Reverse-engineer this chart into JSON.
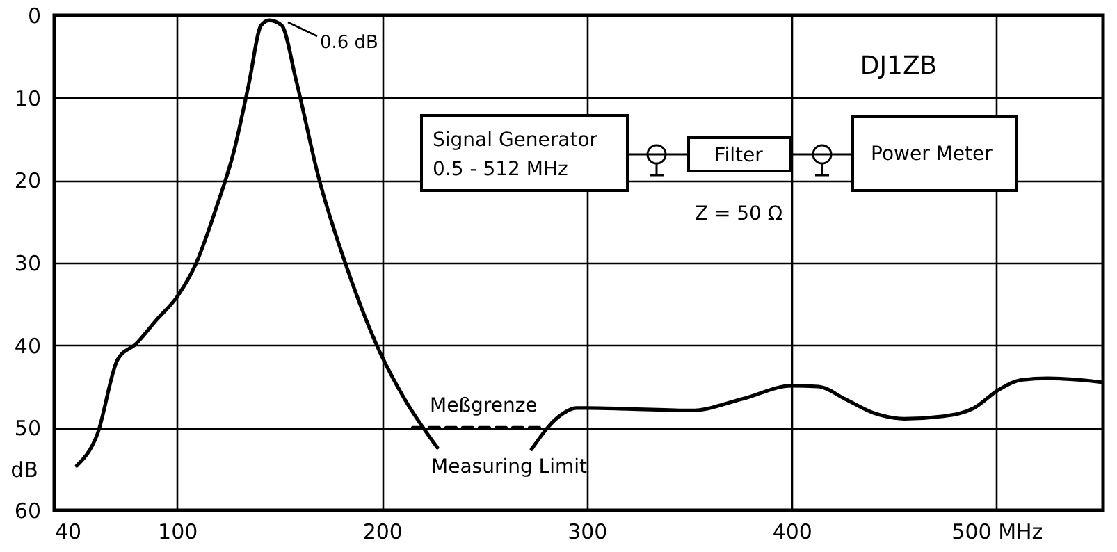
{
  "chart_data": {
    "type": "line",
    "ylabel": "dB",
    "xlim": [
      40,
      552
    ],
    "ylim": [
      60,
      0
    ],
    "xticks": [
      40,
      100,
      200,
      300,
      400,
      {
        "value": 500,
        "label": "500 MHz"
      }
    ],
    "yticks": [
      0,
      10,
      20,
      30,
      40,
      50,
      60
    ],
    "grid": true,
    "marker": "none",
    "series": [
      {
        "color": "#000000",
        "line_style": "solid",
        "x": [
          51,
          61,
          71,
          80,
          90,
          100,
          109,
          119,
          128,
          135,
          141,
          145,
          151,
          158,
          169,
          183,
          198,
          211,
          227
        ],
        "values": [
          54.6,
          50.8,
          41.7,
          39.8,
          36.9,
          34.1,
          30.2,
          23.4,
          16.2,
          8.3,
          1.2,
          0.6,
          1.2,
          7.8,
          19.6,
          30.7,
          40.3,
          46.5,
          52.4
        ]
      },
      {
        "color": "#000000",
        "line_style": "dashed",
        "x": [
          215,
          279
        ],
        "values": [
          50,
          50
        ]
      },
      {
        "color": "#000000",
        "line_style": "solid",
        "x": [
          273,
          286,
          295,
          300,
          320,
          351,
          376,
          400,
          413,
          426,
          440,
          455,
          474,
          489,
          501,
          512,
          525,
          541,
          552
        ],
        "values": [
          52.6,
          48.7,
          47.6,
          47.6,
          47.7,
          47.9,
          46.5,
          44.9,
          45,
          46.5,
          48.2,
          48.9,
          48.6,
          47.6,
          45.4,
          44.2,
          44,
          44.2,
          44.5
        ]
      }
    ],
    "annotations": [
      "0.6 dB",
      "DJ1ZB",
      "Signal Generator",
      "0.5 - 512 MHz",
      "Filter",
      "Power Meter",
      "Z = 50 Ω",
      "Meßgrenze",
      "Measuring Limit"
    ]
  }
}
